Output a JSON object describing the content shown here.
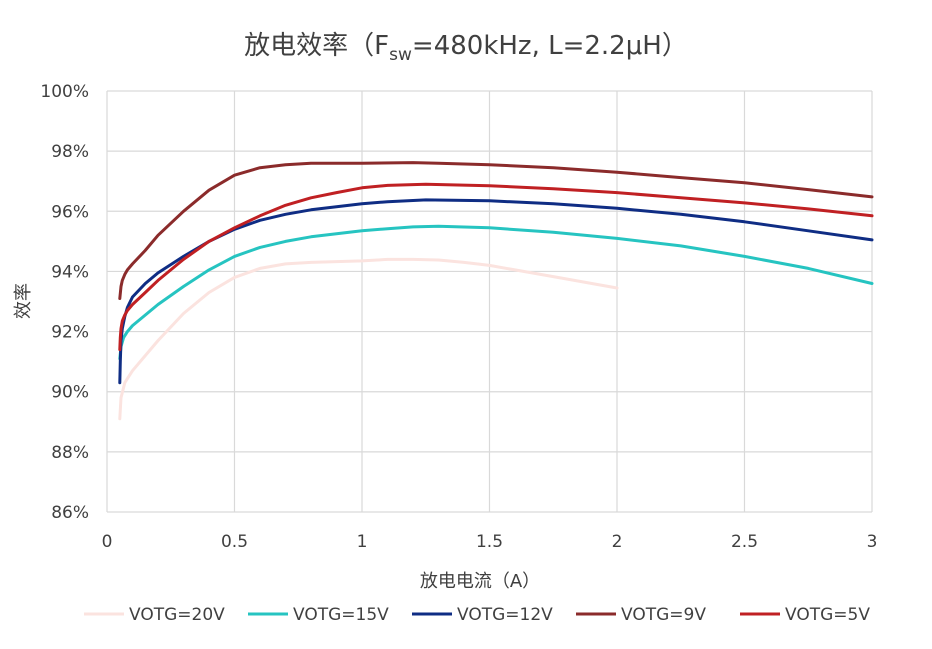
{
  "chart_data": {
    "type": "line",
    "title": {
      "prefix": "放电效率（F",
      "subscript": "sw",
      "suffix": "=480kHz, L=2.2μH）"
    },
    "xlabel": "放电电流（A）",
    "ylabel": "效率",
    "xlim": [
      0,
      3
    ],
    "ylim": [
      86,
      100
    ],
    "x_ticks": [
      0,
      0.5,
      1,
      1.5,
      2,
      2.5,
      3
    ],
    "x_tick_labels": [
      "0",
      "0.5",
      "1",
      "1.5",
      "2",
      "2.5",
      "3"
    ],
    "y_ticks": [
      86,
      88,
      90,
      92,
      94,
      96,
      98,
      100
    ],
    "y_tick_labels": [
      "86%",
      "88%",
      "90%",
      "92%",
      "94%",
      "96%",
      "98%",
      "100%"
    ],
    "grid": true,
    "legend_position": "bottom",
    "series": [
      {
        "name": "VOTG=20V",
        "color": "#fbe3df",
        "points": [
          [
            0.05,
            89.1
          ],
          [
            0.055,
            89.8
          ],
          [
            0.07,
            90.3
          ],
          [
            0.1,
            90.7
          ],
          [
            0.2,
            91.7
          ],
          [
            0.3,
            92.6
          ],
          [
            0.4,
            93.3
          ],
          [
            0.5,
            93.8
          ],
          [
            0.6,
            94.1
          ],
          [
            0.7,
            94.25
          ],
          [
            0.8,
            94.3
          ],
          [
            1.0,
            94.35
          ],
          [
            1.1,
            94.4
          ],
          [
            1.2,
            94.4
          ],
          [
            1.3,
            94.38
          ],
          [
            1.4,
            94.3
          ],
          [
            1.5,
            94.2
          ],
          [
            1.6,
            94.05
          ],
          [
            1.8,
            93.75
          ],
          [
            2.0,
            93.45
          ]
        ]
      },
      {
        "name": "VOTG=15V",
        "color": "#26c4c1",
        "points": [
          [
            0.05,
            91.1
          ],
          [
            0.055,
            91.5
          ],
          [
            0.065,
            91.8
          ],
          [
            0.08,
            92.0
          ],
          [
            0.1,
            92.2
          ],
          [
            0.2,
            92.9
          ],
          [
            0.3,
            93.5
          ],
          [
            0.4,
            94.05
          ],
          [
            0.5,
            94.5
          ],
          [
            0.6,
            94.8
          ],
          [
            0.7,
            95.0
          ],
          [
            0.8,
            95.15
          ],
          [
            0.9,
            95.25
          ],
          [
            1.0,
            95.35
          ],
          [
            1.1,
            95.42
          ],
          [
            1.2,
            95.48
          ],
          [
            1.3,
            95.5
          ],
          [
            1.5,
            95.45
          ],
          [
            1.75,
            95.3
          ],
          [
            2.0,
            95.1
          ],
          [
            2.25,
            94.85
          ],
          [
            2.5,
            94.5
          ],
          [
            2.75,
            94.1
          ],
          [
            3.0,
            93.6
          ]
        ]
      },
      {
        "name": "VOTG=12V",
        "color": "#0f2d84",
        "points": [
          [
            0.05,
            90.3
          ],
          [
            0.052,
            91.0
          ],
          [
            0.055,
            91.7
          ],
          [
            0.06,
            92.1
          ],
          [
            0.07,
            92.5
          ],
          [
            0.08,
            92.8
          ],
          [
            0.1,
            93.15
          ],
          [
            0.15,
            93.6
          ],
          [
            0.2,
            93.95
          ],
          [
            0.3,
            94.5
          ],
          [
            0.4,
            95.0
          ],
          [
            0.5,
            95.4
          ],
          [
            0.6,
            95.7
          ],
          [
            0.7,
            95.9
          ],
          [
            0.8,
            96.05
          ],
          [
            1.0,
            96.25
          ],
          [
            1.1,
            96.32
          ],
          [
            1.25,
            96.38
          ],
          [
            1.5,
            96.35
          ],
          [
            1.75,
            96.25
          ],
          [
            2.0,
            96.1
          ],
          [
            2.25,
            95.9
          ],
          [
            2.5,
            95.65
          ],
          [
            2.75,
            95.35
          ],
          [
            3.0,
            95.05
          ]
        ]
      },
      {
        "name": "VOTG=9V",
        "color": "#8b2b2b",
        "points": [
          [
            0.05,
            93.1
          ],
          [
            0.055,
            93.5
          ],
          [
            0.06,
            93.7
          ],
          [
            0.07,
            93.9
          ],
          [
            0.08,
            94.05
          ],
          [
            0.1,
            94.25
          ],
          [
            0.15,
            94.7
          ],
          [
            0.2,
            95.2
          ],
          [
            0.3,
            96.0
          ],
          [
            0.4,
            96.7
          ],
          [
            0.5,
            97.2
          ],
          [
            0.6,
            97.45
          ],
          [
            0.7,
            97.55
          ],
          [
            0.8,
            97.6
          ],
          [
            1.0,
            97.6
          ],
          [
            1.2,
            97.62
          ],
          [
            1.3,
            97.6
          ],
          [
            1.5,
            97.55
          ],
          [
            1.75,
            97.45
          ],
          [
            2.0,
            97.3
          ],
          [
            2.25,
            97.12
          ],
          [
            2.5,
            96.95
          ],
          [
            2.75,
            96.72
          ],
          [
            3.0,
            96.48
          ]
        ]
      },
      {
        "name": "VOTG=5V",
        "color": "#c02023",
        "points": [
          [
            0.05,
            91.4
          ],
          [
            0.052,
            91.8
          ],
          [
            0.055,
            92.1
          ],
          [
            0.06,
            92.35
          ],
          [
            0.07,
            92.55
          ],
          [
            0.08,
            92.7
          ],
          [
            0.1,
            92.9
          ],
          [
            0.15,
            93.3
          ],
          [
            0.2,
            93.7
          ],
          [
            0.3,
            94.4
          ],
          [
            0.4,
            95.0
          ],
          [
            0.5,
            95.45
          ],
          [
            0.6,
            95.85
          ],
          [
            0.7,
            96.2
          ],
          [
            0.8,
            96.45
          ],
          [
            0.9,
            96.62
          ],
          [
            1.0,
            96.78
          ],
          [
            1.1,
            96.86
          ],
          [
            1.25,
            96.9
          ],
          [
            1.5,
            96.85
          ],
          [
            1.75,
            96.75
          ],
          [
            2.0,
            96.62
          ],
          [
            2.25,
            96.45
          ],
          [
            2.5,
            96.28
          ],
          [
            2.75,
            96.08
          ],
          [
            3.0,
            95.85
          ]
        ]
      }
    ]
  }
}
